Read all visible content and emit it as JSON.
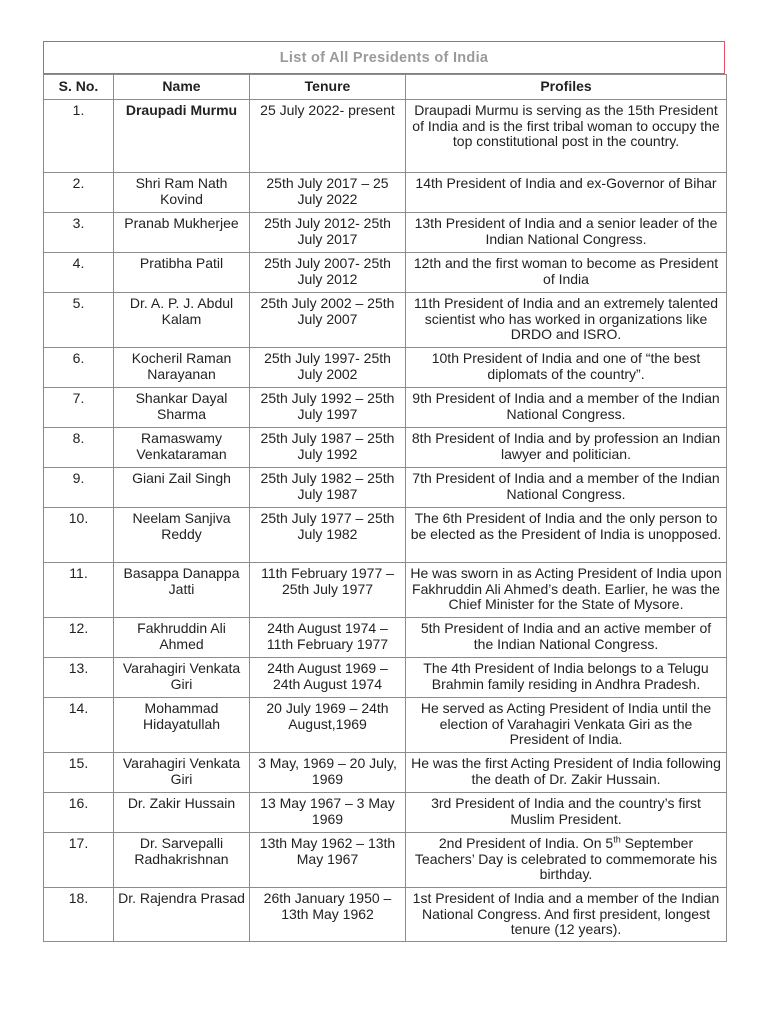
{
  "title": "List of All Presidents of India",
  "headers": [
    "S. No.",
    "Name",
    "Tenure",
    "Profiles"
  ],
  "rows": [
    {
      "no": "1.",
      "name": "Draupadi Murmu",
      "tenure": "25 July 2022- present",
      "profile": "Draupadi Murmu is serving as the 15th President of India and is the first tribal woman to occupy the top constitutional post in the country.",
      "bold": true
    },
    {
      "no": "2.",
      "name": "Shri Ram Nath Kovind",
      "tenure": "25th July 2017 – 25 July 2022",
      "profile": "14th President of India and ex-Governor of Bihar"
    },
    {
      "no": "3.",
      "name": "Pranab Mukherjee",
      "tenure": "25th July 2012- 25th July 2017",
      "profile": "13th President of India and a senior leader of the Indian National Congress."
    },
    {
      "no": "4.",
      "name": "Pratibha Patil",
      "tenure": "25th July 2007- 25th July 2012",
      "profile": "12th and the first woman to become as President of India"
    },
    {
      "no": "5.",
      "name": "Dr. A. P. J. Abdul Kalam",
      "tenure": "25th July 2002 – 25th July 2007",
      "profile": "11th President of India and an extremely talented scientist who has worked in organizations like DRDO and ISRO."
    },
    {
      "no": "6.",
      "name": "Kocheril Raman Narayanan",
      "tenure": "25th July 1997- 25th July 2002",
      "profile": "10th President of India and one of “the best diplomats of the country”."
    },
    {
      "no": "7.",
      "name": "Shankar Dayal Sharma",
      "tenure": "25th July 1992 – 25th July 1997",
      "profile": "9th President of India and a member of the Indian National Congress."
    },
    {
      "no": "8.",
      "name": "Ramaswamy Venkataraman",
      "tenure": "25th July 1987 – 25th July 1992",
      "profile": "8th President of India and by profession an Indian lawyer and politician."
    },
    {
      "no": "9.",
      "name": "Giani Zail Singh",
      "tenure": "25th July 1982 – 25th July 1987",
      "profile": "7th President of India and a member of the Indian National Congress."
    },
    {
      "no": "10.",
      "name": "Neelam Sanjiva Reddy",
      "tenure": "25th July 1977 – 25th July 1982",
      "profile": "The 6th President of India and the only person to be elected as the President of India is unopposed."
    },
    {
      "no": "11.",
      "name": "Basappa Danappa Jatti",
      "tenure": "11th February 1977 – 25th July 1977",
      "profile": "He was sworn in as Acting President of India upon Fakhruddin Ali Ahmed’s death. Earlier, he was the Chief Minister for the State of Mysore."
    },
    {
      "no": "12.",
      "name": "Fakhruddin Ali Ahmed",
      "tenure": "24th August 1974 – 11th February 1977",
      "profile": "5th President of India and an active member of the Indian National Congress."
    },
    {
      "no": "13.",
      "name": "Varahagiri Venkata Giri",
      "tenure": "24th August 1969 – 24th August 1974",
      "profile": "The 4th President of India belongs to a Telugu Brahmin family residing in Andhra Pradesh."
    },
    {
      "no": "14.",
      "name": "Mohammad Hidayatullah",
      "tenure": "20 July 1969 – 24th August,1969",
      "profile": "He served as Acting President of India until the election of Varahagiri Venkata Giri as the President of India."
    },
    {
      "no": "15.",
      "name": "Varahagiri Venkata Giri",
      "tenure": "3 May, 1969 – 20 July, 1969",
      "profile": "He was the first Acting President of India following the death of Dr. Zakir Hussain."
    },
    {
      "no": "16.",
      "name": "Dr. Zakir Hussain",
      "tenure": "13 May 1967 –  3 May 1969",
      "profile": "3rd President of India and the country’s first Muslim President."
    },
    {
      "no": "17.",
      "name": "Dr. Sarvepalli Radhakrishnan",
      "tenure": "13th May 1962 – 13th May 1967",
      "profile": "2nd President of India. On 5",
      "profile_sup": "th",
      "profile_after": " September Teachers’ Day is celebrated to commemorate his birthday."
    },
    {
      "no": "18.",
      "name": "Dr. Rajendra Prasad",
      "tenure": "26th January 1950 – 13th May 1962",
      "profile": "1st President of India and a member of the Indian National Congress. And first president, longest tenure (12 years)."
    }
  ],
  "colors": {
    "title_border": "#e8506a",
    "title_text": "#9a9a9a",
    "grid": "#8c8c8c"
  }
}
